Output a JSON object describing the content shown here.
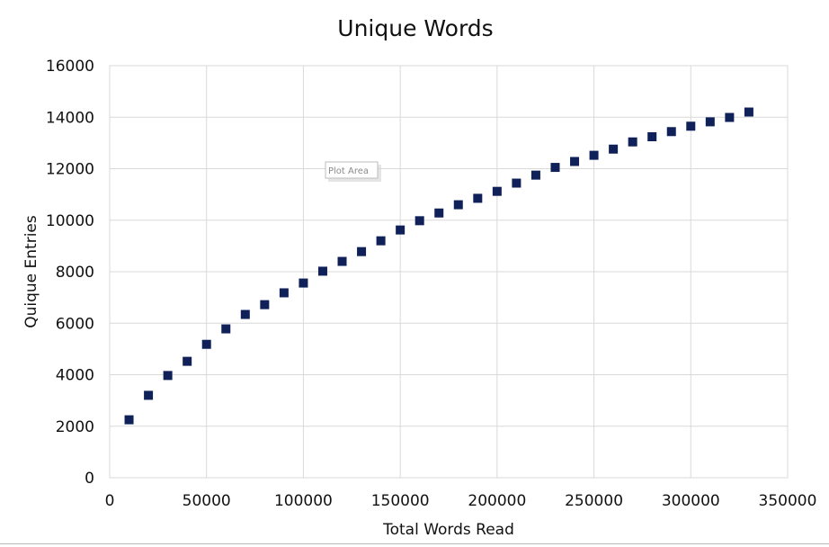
{
  "chart_data": {
    "type": "scatter",
    "title": "Unique Words",
    "xlabel": "Total Words Read",
    "ylabel": "Quique Entries",
    "xlim": [
      0,
      350000
    ],
    "ylim": [
      0,
      16000
    ],
    "x_ticks": [
      "0",
      "50000",
      "100000",
      "150000",
      "200000",
      "250000",
      "300000",
      "350000"
    ],
    "y_ticks": [
      "0",
      "2000",
      "4000",
      "6000",
      "8000",
      "10000",
      "12000",
      "14000",
      "16000"
    ],
    "grid": true,
    "legend": "none",
    "marker": "square",
    "marker_color": "#0f2158",
    "series": [
      {
        "x": [
          10000,
          20000,
          30000,
          40000,
          50000,
          60000,
          70000,
          80000,
          90000,
          100000,
          110000,
          120000,
          130000,
          140000,
          150000,
          160000,
          170000,
          180000,
          190000,
          200000,
          210000,
          220000,
          230000,
          240000,
          250000,
          260000,
          270000,
          280000,
          290000,
          300000,
          310000,
          320000,
          330000
        ],
        "y": [
          2250,
          3200,
          3970,
          4520,
          5180,
          5780,
          6340,
          6720,
          7180,
          7560,
          8020,
          8400,
          8780,
          9200,
          9620,
          9980,
          10280,
          10600,
          10850,
          11120,
          11440,
          11750,
          12050,
          12280,
          12520,
          12760,
          13040,
          13240,
          13440,
          13650,
          13820,
          13990,
          14200
        ]
      }
    ]
  },
  "ui": {
    "tooltip_label": "Plot Area"
  }
}
